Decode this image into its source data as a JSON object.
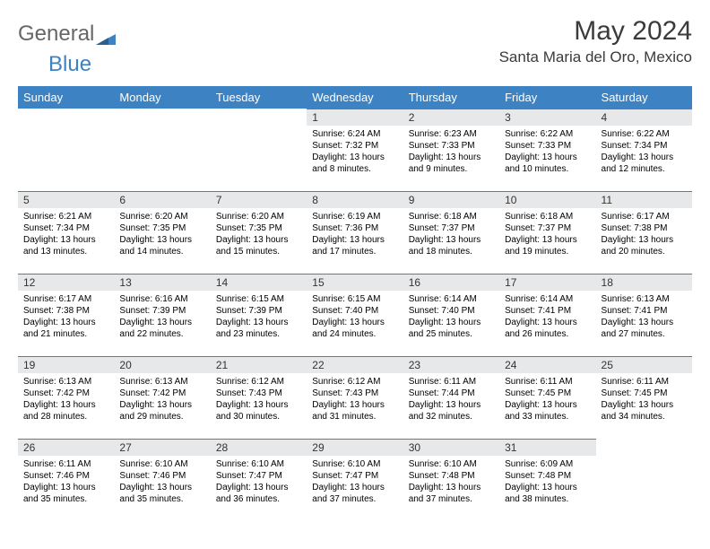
{
  "brand": {
    "part1": "General",
    "part2": "Blue"
  },
  "title": "May 2024",
  "location": "Santa Maria del Oro, Mexico",
  "colors": {
    "header_bg": "#3d83c4",
    "header_text": "#ffffff",
    "daynum_bg": "#e7e8e9",
    "row_border": "#3d83c4",
    "page_bg": "#ffffff"
  },
  "day_headers": [
    "Sunday",
    "Monday",
    "Tuesday",
    "Wednesday",
    "Thursday",
    "Friday",
    "Saturday"
  ],
  "weeks": [
    [
      {
        "empty": true
      },
      {
        "empty": true
      },
      {
        "empty": true
      },
      {
        "num": "1",
        "sunrise": "Sunrise: 6:24 AM",
        "sunset": "Sunset: 7:32 PM",
        "daylight": "Daylight: 13 hours and 8 minutes."
      },
      {
        "num": "2",
        "sunrise": "Sunrise: 6:23 AM",
        "sunset": "Sunset: 7:33 PM",
        "daylight": "Daylight: 13 hours and 9 minutes."
      },
      {
        "num": "3",
        "sunrise": "Sunrise: 6:22 AM",
        "sunset": "Sunset: 7:33 PM",
        "daylight": "Daylight: 13 hours and 10 minutes."
      },
      {
        "num": "4",
        "sunrise": "Sunrise: 6:22 AM",
        "sunset": "Sunset: 7:34 PM",
        "daylight": "Daylight: 13 hours and 12 minutes."
      }
    ],
    [
      {
        "num": "5",
        "sunrise": "Sunrise: 6:21 AM",
        "sunset": "Sunset: 7:34 PM",
        "daylight": "Daylight: 13 hours and 13 minutes."
      },
      {
        "num": "6",
        "sunrise": "Sunrise: 6:20 AM",
        "sunset": "Sunset: 7:35 PM",
        "daylight": "Daylight: 13 hours and 14 minutes."
      },
      {
        "num": "7",
        "sunrise": "Sunrise: 6:20 AM",
        "sunset": "Sunset: 7:35 PM",
        "daylight": "Daylight: 13 hours and 15 minutes."
      },
      {
        "num": "8",
        "sunrise": "Sunrise: 6:19 AM",
        "sunset": "Sunset: 7:36 PM",
        "daylight": "Daylight: 13 hours and 17 minutes."
      },
      {
        "num": "9",
        "sunrise": "Sunrise: 6:18 AM",
        "sunset": "Sunset: 7:37 PM",
        "daylight": "Daylight: 13 hours and 18 minutes."
      },
      {
        "num": "10",
        "sunrise": "Sunrise: 6:18 AM",
        "sunset": "Sunset: 7:37 PM",
        "daylight": "Daylight: 13 hours and 19 minutes."
      },
      {
        "num": "11",
        "sunrise": "Sunrise: 6:17 AM",
        "sunset": "Sunset: 7:38 PM",
        "daylight": "Daylight: 13 hours and 20 minutes."
      }
    ],
    [
      {
        "num": "12",
        "sunrise": "Sunrise: 6:17 AM",
        "sunset": "Sunset: 7:38 PM",
        "daylight": "Daylight: 13 hours and 21 minutes."
      },
      {
        "num": "13",
        "sunrise": "Sunrise: 6:16 AM",
        "sunset": "Sunset: 7:39 PM",
        "daylight": "Daylight: 13 hours and 22 minutes."
      },
      {
        "num": "14",
        "sunrise": "Sunrise: 6:15 AM",
        "sunset": "Sunset: 7:39 PM",
        "daylight": "Daylight: 13 hours and 23 minutes."
      },
      {
        "num": "15",
        "sunrise": "Sunrise: 6:15 AM",
        "sunset": "Sunset: 7:40 PM",
        "daylight": "Daylight: 13 hours and 24 minutes."
      },
      {
        "num": "16",
        "sunrise": "Sunrise: 6:14 AM",
        "sunset": "Sunset: 7:40 PM",
        "daylight": "Daylight: 13 hours and 25 minutes."
      },
      {
        "num": "17",
        "sunrise": "Sunrise: 6:14 AM",
        "sunset": "Sunset: 7:41 PM",
        "daylight": "Daylight: 13 hours and 26 minutes."
      },
      {
        "num": "18",
        "sunrise": "Sunrise: 6:13 AM",
        "sunset": "Sunset: 7:41 PM",
        "daylight": "Daylight: 13 hours and 27 minutes."
      }
    ],
    [
      {
        "num": "19",
        "sunrise": "Sunrise: 6:13 AM",
        "sunset": "Sunset: 7:42 PM",
        "daylight": "Daylight: 13 hours and 28 minutes."
      },
      {
        "num": "20",
        "sunrise": "Sunrise: 6:13 AM",
        "sunset": "Sunset: 7:42 PM",
        "daylight": "Daylight: 13 hours and 29 minutes."
      },
      {
        "num": "21",
        "sunrise": "Sunrise: 6:12 AM",
        "sunset": "Sunset: 7:43 PM",
        "daylight": "Daylight: 13 hours and 30 minutes."
      },
      {
        "num": "22",
        "sunrise": "Sunrise: 6:12 AM",
        "sunset": "Sunset: 7:43 PM",
        "daylight": "Daylight: 13 hours and 31 minutes."
      },
      {
        "num": "23",
        "sunrise": "Sunrise: 6:11 AM",
        "sunset": "Sunset: 7:44 PM",
        "daylight": "Daylight: 13 hours and 32 minutes."
      },
      {
        "num": "24",
        "sunrise": "Sunrise: 6:11 AM",
        "sunset": "Sunset: 7:45 PM",
        "daylight": "Daylight: 13 hours and 33 minutes."
      },
      {
        "num": "25",
        "sunrise": "Sunrise: 6:11 AM",
        "sunset": "Sunset: 7:45 PM",
        "daylight": "Daylight: 13 hours and 34 minutes."
      }
    ],
    [
      {
        "num": "26",
        "sunrise": "Sunrise: 6:11 AM",
        "sunset": "Sunset: 7:46 PM",
        "daylight": "Daylight: 13 hours and 35 minutes."
      },
      {
        "num": "27",
        "sunrise": "Sunrise: 6:10 AM",
        "sunset": "Sunset: 7:46 PM",
        "daylight": "Daylight: 13 hours and 35 minutes."
      },
      {
        "num": "28",
        "sunrise": "Sunrise: 6:10 AM",
        "sunset": "Sunset: 7:47 PM",
        "daylight": "Daylight: 13 hours and 36 minutes."
      },
      {
        "num": "29",
        "sunrise": "Sunrise: 6:10 AM",
        "sunset": "Sunset: 7:47 PM",
        "daylight": "Daylight: 13 hours and 37 minutes."
      },
      {
        "num": "30",
        "sunrise": "Sunrise: 6:10 AM",
        "sunset": "Sunset: 7:48 PM",
        "daylight": "Daylight: 13 hours and 37 minutes."
      },
      {
        "num": "31",
        "sunrise": "Sunrise: 6:09 AM",
        "sunset": "Sunset: 7:48 PM",
        "daylight": "Daylight: 13 hours and 38 minutes."
      },
      {
        "empty": true
      }
    ]
  ]
}
